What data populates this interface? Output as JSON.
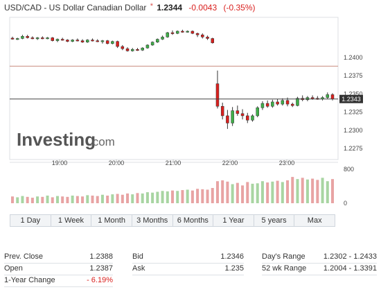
{
  "header": {
    "name": "USD/CAD - US Dollar Canadian Dollar",
    "star": "*",
    "price": "1.2344",
    "change": "-0.0043",
    "change_pct": "(-0.35%)"
  },
  "chart_data": {
    "type": "candlestick",
    "y_axis": {
      "ticks": [
        "1.2400",
        "1.2375",
        "1.2350",
        "1.2325",
        "1.2300",
        "1.2275"
      ],
      "ylim": [
        1.226,
        1.2455
      ]
    },
    "x_axis": {
      "ticks": [
        "19:00",
        "20:00",
        "21:00",
        "22:00",
        "23:00"
      ]
    },
    "current_price_label": "1.2343",
    "current_price": 1.2343,
    "reference_line": 1.2388,
    "volume_axis": {
      "ticks": [
        "800",
        "0"
      ],
      "max": 900
    },
    "candles": [
      {
        "o": 1.24265,
        "h": 1.24285,
        "l": 1.24245,
        "c": 1.24255
      },
      {
        "o": 1.24255,
        "h": 1.2427,
        "l": 1.2424,
        "c": 1.2426
      },
      {
        "o": 1.2426,
        "h": 1.2431,
        "l": 1.2425,
        "c": 1.2429
      },
      {
        "o": 1.2429,
        "h": 1.2431,
        "l": 1.2426,
        "c": 1.2427
      },
      {
        "o": 1.2427,
        "h": 1.2429,
        "l": 1.2425,
        "c": 1.2426
      },
      {
        "o": 1.2426,
        "h": 1.2428,
        "l": 1.2424,
        "c": 1.2427
      },
      {
        "o": 1.2427,
        "h": 1.2429,
        "l": 1.2425,
        "c": 1.2426
      },
      {
        "o": 1.2426,
        "h": 1.2428,
        "l": 1.2425,
        "c": 1.2427
      },
      {
        "o": 1.2427,
        "h": 1.2428,
        "l": 1.2422,
        "c": 1.2423
      },
      {
        "o": 1.2423,
        "h": 1.2426,
        "l": 1.2421,
        "c": 1.2425
      },
      {
        "o": 1.2425,
        "h": 1.2427,
        "l": 1.2423,
        "c": 1.2424
      },
      {
        "o": 1.2424,
        "h": 1.2425,
        "l": 1.2421,
        "c": 1.2422
      },
      {
        "o": 1.2422,
        "h": 1.2425,
        "l": 1.2421,
        "c": 1.2424
      },
      {
        "o": 1.2424,
        "h": 1.2426,
        "l": 1.2422,
        "c": 1.2423
      },
      {
        "o": 1.2423,
        "h": 1.2425,
        "l": 1.242,
        "c": 1.2421
      },
      {
        "o": 1.2421,
        "h": 1.2425,
        "l": 1.242,
        "c": 1.2424
      },
      {
        "o": 1.2424,
        "h": 1.2426,
        "l": 1.2422,
        "c": 1.2423
      },
      {
        "o": 1.2423,
        "h": 1.2425,
        "l": 1.2421,
        "c": 1.2422
      },
      {
        "o": 1.2422,
        "h": 1.2424,
        "l": 1.2419,
        "c": 1.2423
      },
      {
        "o": 1.2423,
        "h": 1.2424,
        "l": 1.2418,
        "c": 1.2419
      },
      {
        "o": 1.2419,
        "h": 1.2423,
        "l": 1.2418,
        "c": 1.2422
      },
      {
        "o": 1.2422,
        "h": 1.2423,
        "l": 1.2413,
        "c": 1.2415
      },
      {
        "o": 1.2415,
        "h": 1.2417,
        "l": 1.241,
        "c": 1.2412
      },
      {
        "o": 1.2412,
        "h": 1.2414,
        "l": 1.2408,
        "c": 1.2409
      },
      {
        "o": 1.2409,
        "h": 1.2413,
        "l": 1.2408,
        "c": 1.2411
      },
      {
        "o": 1.2411,
        "h": 1.2413,
        "l": 1.2409,
        "c": 1.241
      },
      {
        "o": 1.241,
        "h": 1.2414,
        "l": 1.2409,
        "c": 1.2413
      },
      {
        "o": 1.2413,
        "h": 1.2418,
        "l": 1.2412,
        "c": 1.2417
      },
      {
        "o": 1.2417,
        "h": 1.2422,
        "l": 1.2416,
        "c": 1.2421
      },
      {
        "o": 1.2421,
        "h": 1.2426,
        "l": 1.242,
        "c": 1.2425
      },
      {
        "o": 1.2425,
        "h": 1.243,
        "l": 1.2424,
        "c": 1.2428
      },
      {
        "o": 1.2428,
        "h": 1.2435,
        "l": 1.2427,
        "c": 1.2434
      },
      {
        "o": 1.2434,
        "h": 1.2437,
        "l": 1.2431,
        "c": 1.2433
      },
      {
        "o": 1.2433,
        "h": 1.2437,
        "l": 1.2432,
        "c": 1.2436
      },
      {
        "o": 1.2436,
        "h": 1.2438,
        "l": 1.2434,
        "c": 1.2435
      },
      {
        "o": 1.2435,
        "h": 1.2437,
        "l": 1.2434,
        "c": 1.2436
      },
      {
        "o": 1.2436,
        "h": 1.2437,
        "l": 1.2432,
        "c": 1.2433
      },
      {
        "o": 1.2433,
        "h": 1.2434,
        "l": 1.2428,
        "c": 1.2431
      },
      {
        "o": 1.2431,
        "h": 1.2433,
        "l": 1.2426,
        "c": 1.2428
      },
      {
        "o": 1.2428,
        "h": 1.243,
        "l": 1.2424,
        "c": 1.2426
      },
      {
        "o": 1.2426,
        "h": 1.2427,
        "l": 1.2419,
        "c": 1.242
      },
      {
        "o": 1.2364,
        "h": 1.2382,
        "l": 1.233,
        "c": 1.2333
      },
      {
        "o": 1.2333,
        "h": 1.2338,
        "l": 1.2315,
        "c": 1.232
      },
      {
        "o": 1.232,
        "h": 1.2328,
        "l": 1.2302,
        "c": 1.231
      },
      {
        "o": 1.231,
        "h": 1.2332,
        "l": 1.2306,
        "c": 1.2327
      },
      {
        "o": 1.2327,
        "h": 1.2334,
        "l": 1.232,
        "c": 1.2323
      },
      {
        "o": 1.2323,
        "h": 1.2329,
        "l": 1.2315,
        "c": 1.232
      },
      {
        "o": 1.232,
        "h": 1.2324,
        "l": 1.231,
        "c": 1.2314
      },
      {
        "o": 1.2314,
        "h": 1.2322,
        "l": 1.2312,
        "c": 1.232
      },
      {
        "o": 1.232,
        "h": 1.2333,
        "l": 1.2318,
        "c": 1.2331
      },
      {
        "o": 1.2331,
        "h": 1.234,
        "l": 1.2328,
        "c": 1.2337
      },
      {
        "o": 1.2337,
        "h": 1.2341,
        "l": 1.2331,
        "c": 1.2333
      },
      {
        "o": 1.2333,
        "h": 1.2342,
        "l": 1.2331,
        "c": 1.2339
      },
      {
        "o": 1.2339,
        "h": 1.2343,
        "l": 1.2334,
        "c": 1.2336
      },
      {
        "o": 1.2336,
        "h": 1.2344,
        "l": 1.2334,
        "c": 1.2341
      },
      {
        "o": 1.2341,
        "h": 1.2345,
        "l": 1.2333,
        "c": 1.2336
      },
      {
        "o": 1.2336,
        "h": 1.2338,
        "l": 1.2332,
        "c": 1.2334
      },
      {
        "o": 1.2334,
        "h": 1.2346,
        "l": 1.2333,
        "c": 1.2344
      },
      {
        "o": 1.2344,
        "h": 1.2348,
        "l": 1.234,
        "c": 1.2342
      },
      {
        "o": 1.2342,
        "h": 1.2347,
        "l": 1.234,
        "c": 1.2345
      },
      {
        "o": 1.2345,
        "h": 1.2348,
        "l": 1.2342,
        "c": 1.2344
      },
      {
        "o": 1.2344,
        "h": 1.2347,
        "l": 1.2342,
        "c": 1.2343
      },
      {
        "o": 1.2343,
        "h": 1.2347,
        "l": 1.2341,
        "c": 1.2345
      },
      {
        "o": 1.2345,
        "h": 1.2352,
        "l": 1.2343,
        "c": 1.2349
      },
      {
        "o": 1.2349,
        "h": 1.2351,
        "l": 1.2341,
        "c": 1.2343
      }
    ],
    "volumes": [
      160,
      140,
      170,
      150,
      130,
      160,
      150,
      180,
      140,
      170,
      160,
      150,
      180,
      170,
      160,
      190,
      180,
      170,
      200,
      180,
      210,
      220,
      200,
      230,
      210,
      240,
      230,
      260,
      250,
      270,
      290,
      280,
      300,
      290,
      310,
      320,
      300,
      340,
      330,
      320,
      360,
      520,
      540,
      510,
      450,
      480,
      420,
      500,
      460,
      470,
      520,
      490,
      510,
      530,
      500,
      540,
      620,
      570,
      600,
      560,
      580,
      550,
      600,
      520,
      570
    ]
  },
  "range_buttons": [
    "1 Day",
    "1 Week",
    "1 Month",
    "3 Months",
    "6 Months",
    "1 Year",
    "5 years",
    "Max"
  ],
  "stats": {
    "prev_close_label": "Prev. Close",
    "prev_close": "1.2388",
    "open_label": "Open",
    "open": "1.2387",
    "year_change_label": "1-Year Change",
    "year_change": "- 6.19%",
    "bid_label": "Bid",
    "bid": "1.2346",
    "ask_label": "Ask",
    "ask": "1.235",
    "days_range_label": "Day's Range",
    "days_range": "1.2302 - 1.2433",
    "wk52_label": "52 wk Range",
    "wk52": "1.2004 - 1.3391"
  },
  "colors": {
    "up": "#3fae49",
    "down": "#d9201e",
    "vol_up": "#a8d5a2",
    "vol_down": "#e8a3a3",
    "ref_line": "#c98b7f"
  },
  "logo": {
    "brand": "Investing",
    "suffix": ".com"
  }
}
